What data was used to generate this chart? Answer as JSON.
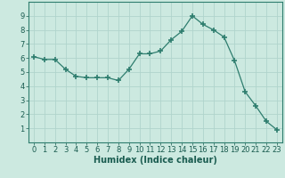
{
  "x": [
    0,
    1,
    2,
    3,
    4,
    5,
    6,
    7,
    8,
    9,
    10,
    11,
    12,
    13,
    14,
    15,
    16,
    17,
    18,
    19,
    20,
    21,
    22,
    23
  ],
  "y": [
    6.1,
    5.9,
    5.9,
    5.2,
    4.7,
    4.6,
    4.6,
    4.6,
    4.4,
    5.2,
    6.3,
    6.3,
    6.5,
    7.3,
    7.9,
    9.0,
    8.4,
    8.0,
    7.5,
    5.8,
    3.6,
    2.6,
    1.5,
    0.9
  ],
  "line_color": "#2e7d6e",
  "marker": "+",
  "marker_size": 4,
  "background_color": "#cce9e0",
  "grid_color": "#b0d4cc",
  "xlabel": "Humidex (Indice chaleur)",
  "xlim": [
    -0.5,
    23.5
  ],
  "ylim": [
    0,
    10
  ],
  "xticks": [
    0,
    1,
    2,
    3,
    4,
    5,
    6,
    7,
    8,
    9,
    10,
    11,
    12,
    13,
    14,
    15,
    16,
    17,
    18,
    19,
    20,
    21,
    22,
    23
  ],
  "yticks": [
    1,
    2,
    3,
    4,
    5,
    6,
    7,
    8,
    9
  ],
  "xlabel_color": "#1a5c50",
  "tick_color": "#1a5c50",
  "axis_color": "#2e7d6e",
  "xlabel_fontsize": 7,
  "tick_fontsize": 6
}
